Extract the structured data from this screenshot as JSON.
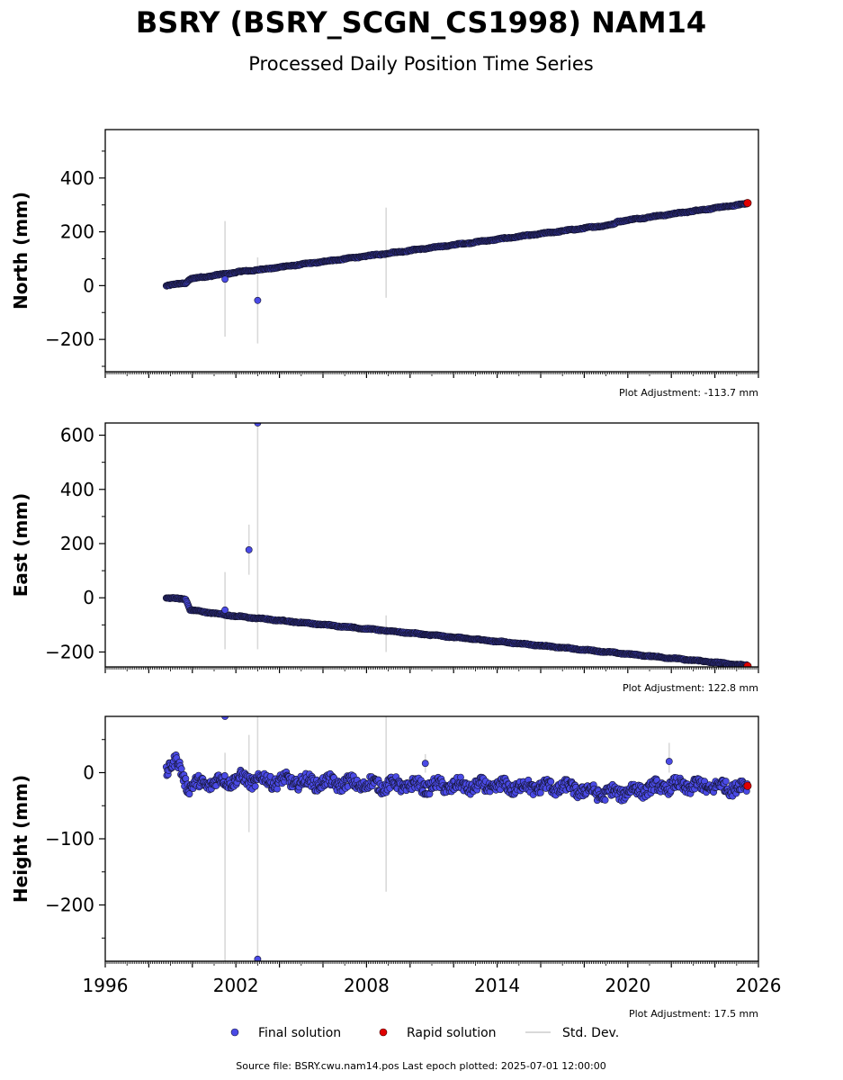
{
  "title": "BSRY (BSRY_SCGN_CS1998) NAM14",
  "subtitle": "Processed Daily Position Time Series",
  "source_note": "Source file: BSRY.cwu.nam14.pos  Last epoch plotted: 2025-07-01 12:00:00",
  "legend": {
    "final_label": "Final solution",
    "rapid_label": "Rapid solution",
    "stddev_label": "Std. Dev.",
    "final_color": "#4a4ae6",
    "rapid_color": "#e00000",
    "stddev_color": "#d9d9d9"
  },
  "chart_data": [
    {
      "type": "scatter",
      "ylabel": "North (mm)",
      "adjustment": "Plot Adjustment: -113.7 mm",
      "xlim": [
        1996,
        2026
      ],
      "ylim": [
        -320,
        580
      ],
      "yticks": [
        -200,
        0,
        200,
        400
      ],
      "ytick_labels": [
        "−200",
        "0",
        "200",
        "400"
      ],
      "trend": [
        [
          1998.8,
          0
        ],
        [
          1999.7,
          10
        ],
        [
          1999.9,
          25
        ],
        [
          2002.5,
          55
        ],
        [
          2003.0,
          58
        ],
        [
          2019.4,
          228
        ],
        [
          2019.5,
          238
        ],
        [
          2025.5,
          305
        ]
      ],
      "noise": 2,
      "outliers": [
        [
          2001.5,
          24
        ],
        [
          2003.0,
          -55
        ]
      ],
      "error_bars": [
        [
          2001.5,
          -190,
          240
        ],
        [
          2003.0,
          -215,
          105
        ],
        [
          2008.9,
          -45,
          290
        ]
      ],
      "rapid": [
        [
          2025.5,
          307
        ]
      ]
    },
    {
      "type": "scatter",
      "ylabel": "East (mm)",
      "adjustment": "Plot Adjustment: 122.8 mm",
      "xlim": [
        1996,
        2026
      ],
      "ylim": [
        -255,
        645
      ],
      "yticks": [
        -200,
        0,
        200,
        400,
        600
      ],
      "ytick_labels": [
        "−200",
        "0",
        "200",
        "400",
        "600"
      ],
      "trend": [
        [
          1998.8,
          0
        ],
        [
          1999.7,
          -5
        ],
        [
          1999.9,
          -45
        ],
        [
          2002.0,
          -68
        ],
        [
          2025.5,
          -250
        ]
      ],
      "noise": 2,
      "outliers": [
        [
          2001.5,
          -45
        ],
        [
          2002.6,
          177
        ],
        [
          2003.0,
          645
        ]
      ],
      "error_bars": [
        [
          2001.5,
          -190,
          95
        ],
        [
          2002.6,
          85,
          270
        ],
        [
          2003.0,
          -190,
          645
        ],
        [
          2008.9,
          -200,
          -65
        ]
      ],
      "rapid": [
        [
          2025.5,
          -252
        ]
      ]
    },
    {
      "type": "scatter",
      "ylabel": "Height (mm)",
      "adjustment": "Plot Adjustment: 17.5 mm",
      "xlim": [
        1996,
        2026
      ],
      "ylim": [
        -285,
        85
      ],
      "yticks": [
        -200,
        -100,
        0
      ],
      "ytick_labels": [
        "−200",
        "−100",
        "0"
      ],
      "xticks": [
        1996,
        2002,
        2008,
        2014,
        2020,
        2026
      ],
      "xtick_labels": [
        "1996",
        "2002",
        "2008",
        "2014",
        "2020",
        "2026"
      ],
      "trend": [
        [
          1998.8,
          5
        ],
        [
          1999.3,
          15
        ],
        [
          1999.8,
          -20
        ],
        [
          2002.0,
          -10
        ],
        [
          2010.0,
          -20
        ],
        [
          2017.0,
          -22
        ],
        [
          2019.0,
          -32
        ],
        [
          2022.0,
          -20
        ],
        [
          2025.5,
          -22
        ]
      ],
      "noise": 9,
      "outliers": [
        [
          2001.5,
          85
        ],
        [
          2003.0,
          -282
        ],
        [
          2010.7,
          14
        ],
        [
          2021.9,
          17
        ]
      ],
      "error_bars": [
        [
          2001.5,
          -285,
          30
        ],
        [
          2002.6,
          -90,
          57
        ],
        [
          2003.0,
          -285,
          85
        ],
        [
          2008.9,
          -180,
          85
        ],
        [
          2010.7,
          0,
          28
        ],
        [
          2021.9,
          0,
          45
        ]
      ],
      "rapid": [
        [
          2025.5,
          -20
        ]
      ]
    }
  ]
}
